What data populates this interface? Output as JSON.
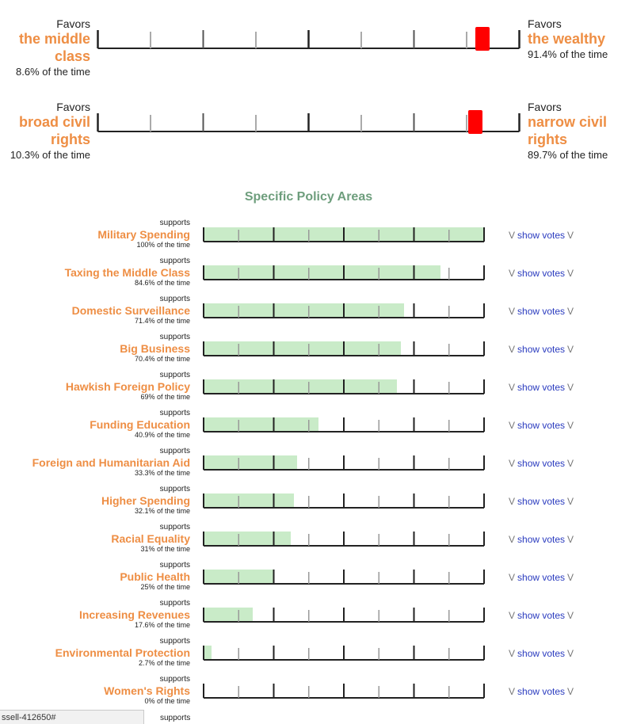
{
  "spectrum": [
    {
      "left_favors": "Favors",
      "left_title_lines": [
        "the middle",
        "class"
      ],
      "left_pct": "8.6% of the time",
      "right_favors": "Favors",
      "right_title_lines": [
        "the wealthy"
      ],
      "right_pct": "91.4% of the time",
      "value": 91.4
    },
    {
      "left_favors": "Favors",
      "left_title_lines": [
        "broad civil",
        "rights"
      ],
      "left_pct": "10.3% of the time",
      "right_favors": "Favors",
      "right_title_lines": [
        "narrow civil",
        "rights"
      ],
      "right_pct": "89.7% of the time",
      "value": 89.7
    }
  ],
  "section_title": "Specific Policy Areas",
  "chart_data": {
    "type": "bar",
    "orientation": "horizontal",
    "xlim": [
      0,
      100
    ],
    "categories": [
      "Military Spending",
      "Taxing the Middle Class",
      "Domestic Surveillance",
      "Big Business",
      "Hawkish Foreign Policy",
      "Funding Education",
      "Foreign and Humanitarian Aid",
      "Higher Spending",
      "Racial Equality",
      "Public Health",
      "Increasing Revenues",
      "Environmental Protection",
      "Women's Rights"
    ],
    "values": [
      100,
      84.6,
      71.4,
      70.4,
      69,
      40.9,
      33.3,
      32.1,
      31,
      25,
      17.6,
      2.7,
      0
    ]
  },
  "policies": [
    {
      "supports": "supports",
      "name": "Military Spending",
      "pct": "100% of the time"
    },
    {
      "supports": "supports",
      "name": "Taxing the Middle Class",
      "pct": "84.6% of the time"
    },
    {
      "supports": "supports",
      "name": "Domestic Surveillance",
      "pct": "71.4% of the time"
    },
    {
      "supports": "supports",
      "name": "Big Business",
      "pct": "70.4% of the time"
    },
    {
      "supports": "supports",
      "name": "Hawkish Foreign Policy",
      "pct": "69% of the time"
    },
    {
      "supports": "supports",
      "name": "Funding Education",
      "pct": "40.9% of the time"
    },
    {
      "supports": "supports",
      "name": "Foreign and Humanitarian Aid",
      "pct": "33.3% of the time"
    },
    {
      "supports": "supports",
      "name": "Higher Spending",
      "pct": "32.1% of the time"
    },
    {
      "supports": "supports",
      "name": "Racial Equality",
      "pct": "31% of the time"
    },
    {
      "supports": "supports",
      "name": "Public Health",
      "pct": "25% of the time"
    },
    {
      "supports": "supports",
      "name": "Increasing Revenues",
      "pct": "17.6% of the time"
    },
    {
      "supports": "supports",
      "name": "Environmental Protection",
      "pct": "2.7% of the time"
    },
    {
      "supports": "supports",
      "name": "Women's Rights",
      "pct": "0% of the time"
    }
  ],
  "votes_label": "show votes",
  "chevron_glyph": "V",
  "partial_supports": "supports",
  "status_url": "ssell-412650#",
  "colors": {
    "accent": "#ee8e44",
    "marker": "#ff0000",
    "bar_fill": "#c9ebc8",
    "link": "#2a3bbf",
    "section": "#6e9e7d"
  }
}
